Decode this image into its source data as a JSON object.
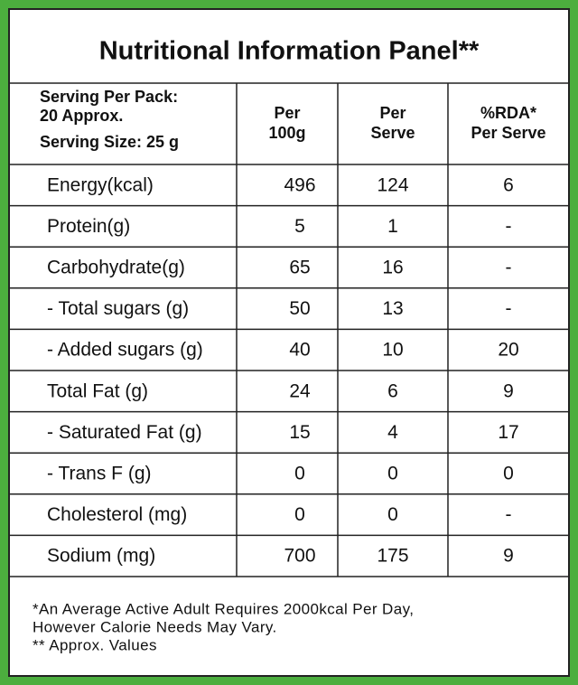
{
  "title": "Nutritional Information Panel**",
  "table": {
    "header": [
      [
        "Serving Per Pack:",
        "20 Approx.",
        "Serving Size: 25 g"
      ],
      [
        "Per",
        "100g"
      ],
      [
        "Per",
        "Serve"
      ],
      [
        "%RDA*",
        "Per Serve"
      ]
    ],
    "rows": [
      [
        "Energy(kcal)",
        "496",
        "124",
        "6"
      ],
      [
        "Protein(g)",
        "5",
        "1",
        "-"
      ],
      [
        "Carbohydrate(g)",
        "65",
        "16",
        "-"
      ],
      [
        "- Total sugars (g)",
        "50",
        "13",
        "-"
      ],
      [
        "- Added sugars (g)",
        "40",
        "10",
        "20"
      ],
      [
        "Total Fat (g)",
        "24",
        "6",
        "9"
      ],
      [
        "- Saturated Fat (g)",
        "15",
        "4",
        "17"
      ],
      [
        "- Trans F (g)",
        "0",
        "0",
        "0"
      ],
      [
        "Cholesterol (mg)",
        "0",
        "0",
        "-"
      ],
      [
        "Sodium (mg)",
        "700",
        "175",
        "9"
      ]
    ]
  },
  "footer": [
    "*An Average Active Adult Requires 2000kcal Per Day,",
    "However Calorie Needs May Vary.",
    "** Approx. Values"
  ]
}
